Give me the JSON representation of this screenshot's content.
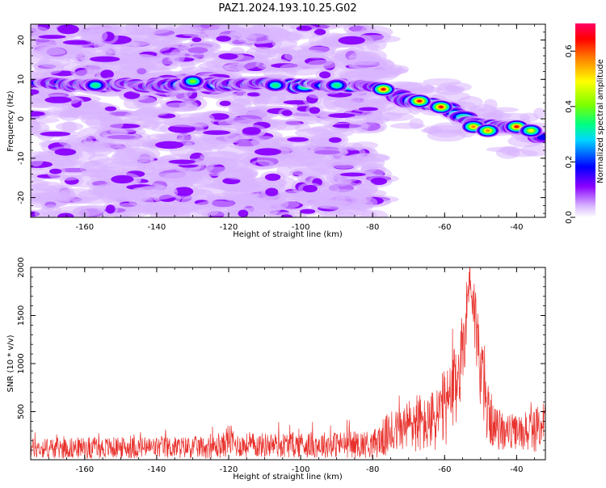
{
  "title": "PAZ1.2024.193.10.25.G02",
  "chart_data": [
    {
      "type": "heatmap",
      "xlabel": "Height of straight line (km)",
      "ylabel": "Frequency (Hz)",
      "xlim": [
        -175,
        -32
      ],
      "ylim": [
        -25,
        24
      ],
      "xticks": [
        -160,
        -140,
        -120,
        -100,
        -80,
        -60,
        -40
      ],
      "yticks": [
        -20,
        -10,
        0,
        10,
        20
      ],
      "colorbar": {
        "label": "Normalized spectral amplitude",
        "range": [
          0,
          0.7
        ],
        "ticks": [
          "0.0",
          "0.2",
          "0.4",
          "0.6"
        ],
        "colormap": "rainbow"
      },
      "ridge": {
        "description_points_x": [
          -172,
          -160,
          -140,
          -120,
          -100,
          -85,
          -78,
          -70,
          -60,
          -50,
          -40,
          -33
        ],
        "description_points_y": [
          9,
          8.5,
          8.5,
          9,
          8.5,
          8.5,
          8,
          5,
          3,
          -2,
          -2,
          -4.5
        ],
        "peak_amplitude": 0.7
      }
    },
    {
      "type": "line",
      "xlabel": "Height of straight line (km)",
      "ylabel": "SNR (10 * v/v)",
      "xlim": [
        -175,
        -32
      ],
      "ylim": [
        0,
        2000
      ],
      "xticks": [
        -160,
        -140,
        -120,
        -100,
        -80,
        -60,
        -40
      ],
      "yticks": [
        500,
        1000,
        1500,
        2000
      ],
      "color": "#e8312c",
      "envelope": {
        "x": [
          -175,
          -122,
          -120,
          -118,
          -80,
          -76,
          -72,
          -68,
          -65,
          -62,
          -58,
          -55,
          -53,
          -51,
          -49,
          -46,
          -40,
          -35,
          -32
        ],
        "baseline": [
          120,
          130,
          220,
          150,
          160,
          250,
          320,
          400,
          350,
          450,
          600,
          1100,
          1950,
          1300,
          600,
          320,
          280,
          300,
          420
        ],
        "spread": [
          120,
          130,
          200,
          140,
          160,
          250,
          250,
          380,
          300,
          420,
          500,
          500,
          300,
          500,
          400,
          250,
          200,
          250,
          250
        ]
      }
    }
  ]
}
